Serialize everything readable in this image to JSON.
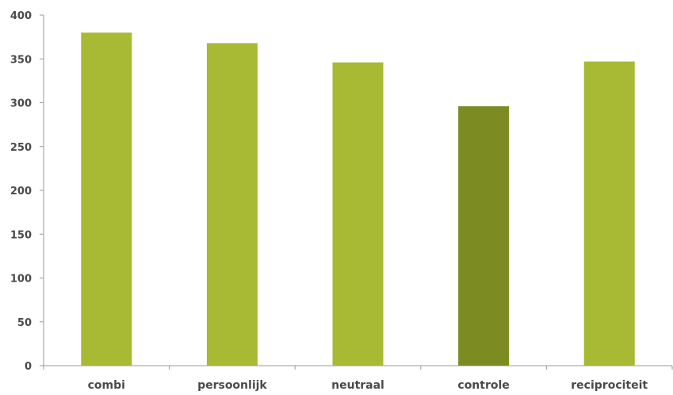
{
  "chart_data": {
    "type": "bar",
    "title": "",
    "xlabel": "",
    "ylabel": "",
    "categories": [
      "combi",
      "persoonlijk",
      "neutraal",
      "controle",
      "reciprociteit"
    ],
    "values": [
      380,
      368,
      346,
      296,
      347
    ],
    "ylim": [
      0,
      400
    ],
    "yticks": [
      0,
      50,
      100,
      150,
      200,
      250,
      300,
      350,
      400
    ],
    "grid": false,
    "legend": "none",
    "colors": {
      "bar": "#a8b933",
      "highlight_bar": "#7c8c22",
      "highlight_category": "controle"
    }
  }
}
